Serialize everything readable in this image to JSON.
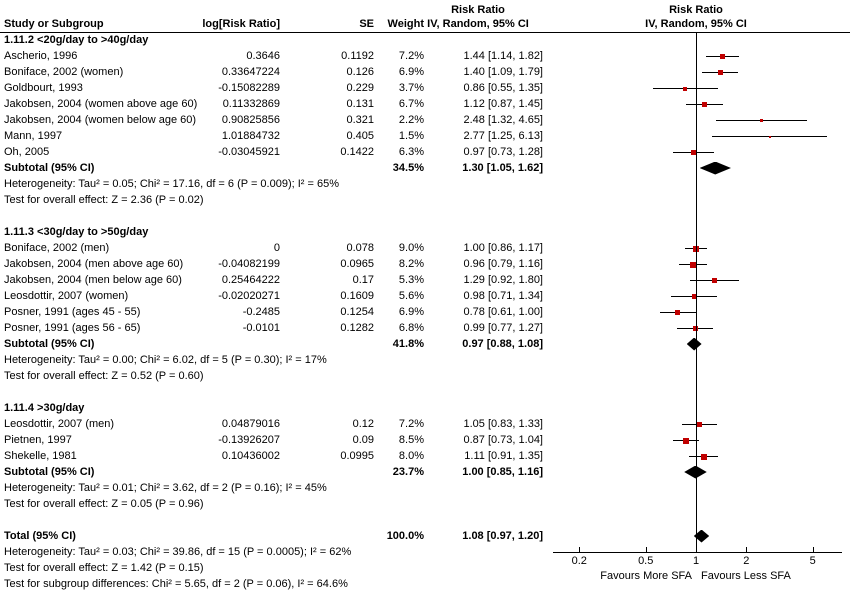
{
  "header": {
    "col_study": "Study or Subgroup",
    "col_log_rr": "log[Risk Ratio]",
    "col_se": "SE",
    "col_weight": "Weight",
    "ci_col_line1": "Risk Ratio",
    "ci_col_line2": "IV, Random, 95% CI",
    "plot_line1": "Risk Ratio",
    "plot_line2": "IV, Random, 95% CI"
  },
  "colors": {
    "marker_red": "#c00000",
    "line_black": "#000000",
    "diamond_black": "#000000",
    "background": "#ffffff"
  },
  "chart_data": {
    "type": "scatter",
    "subtype": "forest-plot-meta-analysis",
    "effect_measure": "Risk Ratio",
    "model": "IV, Random, 95% CI",
    "x_scale": "log",
    "x_axis": {
      "ticks": [
        0.2,
        0.5,
        1,
        2,
        5
      ],
      "tick_labels": [
        "0.2",
        "0.5",
        "1",
        "2",
        "5"
      ],
      "left_label": "Favours More SFA",
      "right_label": "Favours Less SFA"
    },
    "groups": [
      {
        "heading": "1.11.2 <20g/day to >40g/day",
        "studies": [
          {
            "name": "Ascherio, 1996",
            "log_rr": "0.3646",
            "se": "0.1192",
            "weight": "7.2%",
            "ci_text": "1.44 [1.14, 1.82]",
            "rr": 1.44,
            "lo": 1.14,
            "hi": 1.82,
            "w": 7.2
          },
          {
            "name": "Boniface, 2002 (women)",
            "log_rr": "0.33647224",
            "se": "0.126",
            "weight": "6.9%",
            "ci_text": "1.40 [1.09, 1.79]",
            "rr": 1.4,
            "lo": 1.09,
            "hi": 1.79,
            "w": 6.9
          },
          {
            "name": "Goldbourt, 1993",
            "log_rr": "-0.15082289",
            "se": "0.229",
            "weight": "3.7%",
            "ci_text": "0.86 [0.55, 1.35]",
            "rr": 0.86,
            "lo": 0.55,
            "hi": 1.35,
            "w": 3.7
          },
          {
            "name": "Jakobsen, 2004 (women above age 60)",
            "log_rr": "0.11332869",
            "se": "0.131",
            "weight": "6.7%",
            "ci_text": "1.12 [0.87, 1.45]",
            "rr": 1.12,
            "lo": 0.87,
            "hi": 1.45,
            "w": 6.7
          },
          {
            "name": "Jakobsen, 2004 (women below age 60)",
            "log_rr": "0.90825856",
            "se": "0.321",
            "weight": "2.2%",
            "ci_text": "2.48 [1.32, 4.65]",
            "rr": 2.48,
            "lo": 1.32,
            "hi": 4.65,
            "w": 2.2
          },
          {
            "name": "Mann, 1997",
            "log_rr": "1.01884732",
            "se": "0.405",
            "weight": "1.5%",
            "ci_text": "2.77 [1.25, 6.13]",
            "rr": 2.77,
            "lo": 1.25,
            "hi": 6.13,
            "w": 1.5
          },
          {
            "name": "Oh, 2005",
            "log_rr": "-0.03045921",
            "se": "0.1422",
            "weight": "6.3%",
            "ci_text": "0.97 [0.73, 1.28]",
            "rr": 0.97,
            "lo": 0.73,
            "hi": 1.28,
            "w": 6.3
          }
        ],
        "subtotal": {
          "name": "Subtotal (95% CI)",
          "weight": "34.5%",
          "ci_text": "1.30 [1.05, 1.62]",
          "rr": 1.3,
          "lo": 1.05,
          "hi": 1.62
        },
        "heterogeneity": "Heterogeneity: Tau² = 0.05; Chi² = 17.16, df = 6 (P = 0.009); I² = 65%",
        "overall_effect": "Test for overall effect: Z = 2.36 (P = 0.02)"
      },
      {
        "heading": "1.11.3 <30g/day to >50g/day",
        "studies": [
          {
            "name": "Boniface, 2002 (men)",
            "log_rr": "0",
            "se": "0.078",
            "weight": "9.0%",
            "ci_text": "1.00 [0.86, 1.17]",
            "rr": 1.0,
            "lo": 0.86,
            "hi": 1.17,
            "w": 9.0
          },
          {
            "name": "Jakobsen, 2004 (men above age 60)",
            "log_rr": "-0.04082199",
            "se": "0.0965",
            "weight": "8.2%",
            "ci_text": "0.96 [0.79, 1.16]",
            "rr": 0.96,
            "lo": 0.79,
            "hi": 1.16,
            "w": 8.2
          },
          {
            "name": "Jakobsen, 2004 (men below age 60)",
            "log_rr": "0.25464222",
            "se": "0.17",
            "weight": "5.3%",
            "ci_text": "1.29 [0.92, 1.80]",
            "rr": 1.29,
            "lo": 0.92,
            "hi": 1.8,
            "w": 5.3
          },
          {
            "name": "Leosdottir, 2007 (women)",
            "log_rr": "-0.02020271",
            "se": "0.1609",
            "weight": "5.6%",
            "ci_text": "0.98 [0.71, 1.34]",
            "rr": 0.98,
            "lo": 0.71,
            "hi": 1.34,
            "w": 5.6
          },
          {
            "name": "Posner, 1991 (ages 45 - 55)",
            "log_rr": "-0.2485",
            "se": "0.1254",
            "weight": "6.9%",
            "ci_text": "0.78 [0.61, 1.00]",
            "rr": 0.78,
            "lo": 0.61,
            "hi": 1.0,
            "w": 6.9
          },
          {
            "name": "Posner, 1991 (ages 56 - 65)",
            "log_rr": "-0.0101",
            "se": "0.1282",
            "weight": "6.8%",
            "ci_text": "0.99 [0.77, 1.27]",
            "rr": 0.99,
            "lo": 0.77,
            "hi": 1.27,
            "w": 6.8
          }
        ],
        "subtotal": {
          "name": "Subtotal (95% CI)",
          "weight": "41.8%",
          "ci_text": "0.97 [0.88, 1.08]",
          "rr": 0.97,
          "lo": 0.88,
          "hi": 1.08
        },
        "heterogeneity": "Heterogeneity: Tau² = 0.00; Chi² = 6.02, df = 5 (P = 0.30); I² = 17%",
        "overall_effect": "Test for overall effect: Z = 0.52 (P = 0.60)"
      },
      {
        "heading": "1.11.4 >30g/day",
        "studies": [
          {
            "name": "Leosdottir, 2007 (men)",
            "log_rr": "0.04879016",
            "se": "0.12",
            "weight": "7.2%",
            "ci_text": "1.05 [0.83, 1.33]",
            "rr": 1.05,
            "lo": 0.83,
            "hi": 1.33,
            "w": 7.2
          },
          {
            "name": "Pietnen, 1997",
            "log_rr": "-0.13926207",
            "se": "0.09",
            "weight": "8.5%",
            "ci_text": "0.87 [0.73, 1.04]",
            "rr": 0.87,
            "lo": 0.73,
            "hi": 1.04,
            "w": 8.5
          },
          {
            "name": "Shekelle, 1981",
            "log_rr": "0.10436002",
            "se": "0.0995",
            "weight": "8.0%",
            "ci_text": "1.11 [0.91, 1.35]",
            "rr": 1.11,
            "lo": 0.91,
            "hi": 1.35,
            "w": 8.0
          }
        ],
        "subtotal": {
          "name": "Subtotal (95% CI)",
          "weight": "23.7%",
          "ci_text": "1.00 [0.85, 1.16]",
          "rr": 1.0,
          "lo": 0.85,
          "hi": 1.16
        },
        "heterogeneity": "Heterogeneity: Tau² = 0.01; Chi² = 3.62, df = 2 (P = 0.16); I² = 45%",
        "overall_effect": "Test for overall effect: Z = 0.05 (P = 0.96)"
      }
    ],
    "total": {
      "name": "Total (95% CI)",
      "weight": "100.0%",
      "ci_text": "1.08 [0.97, 1.20]",
      "rr": 1.08,
      "lo": 0.97,
      "hi": 1.2,
      "heterogeneity": "Heterogeneity: Tau² = 0.03; Chi² = 39.86, df = 15 (P = 0.0005); I² = 62%",
      "overall_effect": "Test for overall effect: Z = 1.42 (P = 0.15)",
      "subgroup_diff": "Test for subgroup differences: Chi² = 5.65, df = 2 (P = 0.06), I² = 64.6%"
    }
  }
}
